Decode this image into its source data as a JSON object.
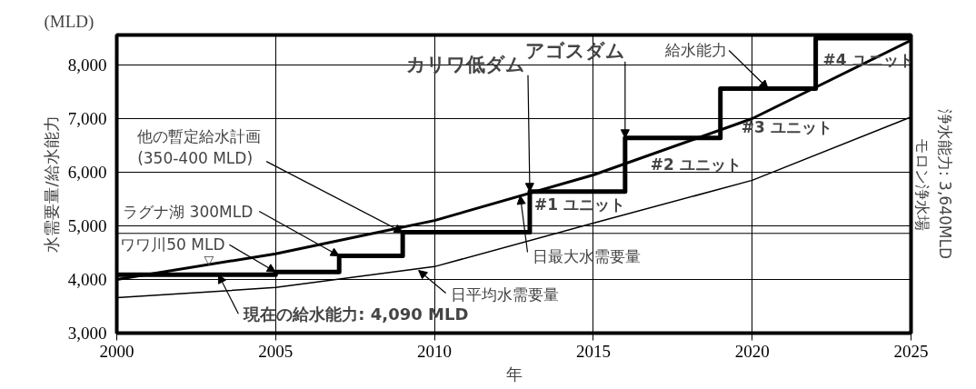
{
  "chart_data": {
    "type": "line",
    "xlabel": "年",
    "ylabel": "水需要量/給水能力",
    "xlim": [
      2000,
      2025
    ],
    "ylim": [
      3000,
      8560
    ],
    "xticks": [
      2000,
      2005,
      2010,
      2015,
      2020,
      2025
    ],
    "yticks": [
      {
        "value": 3000,
        "label": "3,000"
      },
      {
        "value": 4000,
        "label": "4,000"
      },
      {
        "value": 5000,
        "label": "5,000"
      },
      {
        "value": 6000,
        "label": "6,000"
      },
      {
        "value": 7000,
        "label": "7,000"
      },
      {
        "value": 8000,
        "label": "8,000"
      }
    ],
    "grid": true,
    "marker": "none",
    "line_style": "solid",
    "series": [
      {
        "type": "step",
        "color": "#000000",
        "x": [
          2000,
          2005,
          2007,
          2009,
          2013,
          2016,
          2019,
          2022,
          2025
        ],
        "values": [
          4090,
          4140,
          4440,
          4880,
          5640,
          6640,
          7560,
          8500,
          8500
        ]
      },
      {
        "color": "#000000",
        "x": [
          2000,
          2005,
          2010,
          2015,
          2020,
          2025
        ],
        "values": [
          4000,
          4480,
          5100,
          5950,
          7000,
          8460
        ]
      },
      {
        "color": "#000000",
        "x": [
          2000,
          2005,
          2010,
          2015,
          2020,
          2025
        ],
        "values": [
          3660,
          3850,
          4240,
          5050,
          5850,
          7030
        ]
      }
    ],
    "ref_lines": [
      {
        "axis": "y",
        "value": 4860
      }
    ],
    "annotations": [
      {
        "text": "カリワ低ダム",
        "x": 2013,
        "y": 5640
      },
      {
        "text": "アゴスダム",
        "x": 2016,
        "y": 6640
      },
      {
        "text": "給水能力",
        "x": 2020.5,
        "y": 7560
      },
      {
        "text": "他の暫定給水計画\n(350-400 MLD)",
        "x": 2009,
        "y": 4880
      },
      {
        "text": "ラグナ湖 300MLD",
        "x": 2007,
        "y": 4440
      },
      {
        "text": "ワワ川50 MLD",
        "x": 2005,
        "y": 4140
      },
      {
        "text": "現在の給水能力: 4,090 MLD",
        "x": 2003.2,
        "y": 4090
      },
      {
        "text": "▽",
        "x": 2002.9,
        "y": 4090
      },
      {
        "text": "日最大水需要量",
        "x": 2012.7,
        "y": 5560
      },
      {
        "text": "日平均水需要量",
        "x": 2009.5,
        "y": 4170
      },
      {
        "text": "#1 ユニット",
        "x": 2013,
        "y": 5640
      },
      {
        "text": "#2 ユニット",
        "x": 2016,
        "y": 6640
      },
      {
        "text": "#3 ユニット",
        "x": 2019,
        "y": 7560
      },
      {
        "text": "#4 ユニット",
        "x": 2022,
        "y": 8500
      },
      "(MLD)",
      "モロン浄水場",
      "浄水能力: 3,640MLD"
    ]
  }
}
